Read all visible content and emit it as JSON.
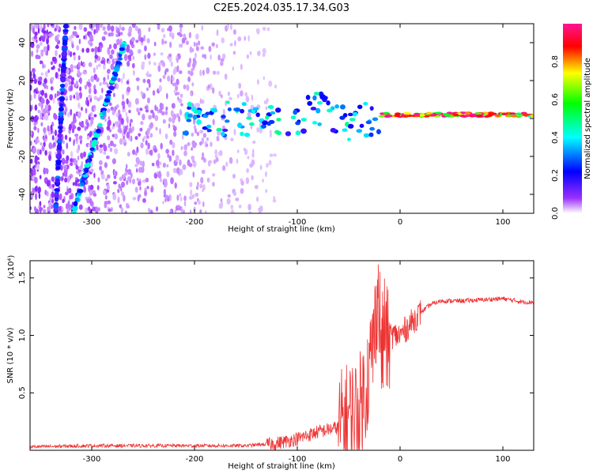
{
  "figure_title": "C2E5.2024.035.17.34.G03",
  "chart_data": [
    {
      "type": "heatmap",
      "xlabel": "Height of straight line (km)",
      "ylabel": "Frequency (Hz)",
      "xlim": [
        -360,
        130
      ],
      "ylim": [
        -50,
        50
      ],
      "x_ticks": [
        -300,
        -200,
        -100,
        0,
        100
      ],
      "y_ticks": [
        -40,
        -20,
        0,
        20,
        40
      ],
      "grid": false,
      "colorbar": {
        "label": "Normalized spectral amplitude",
        "range": [
          0.0,
          1.0
        ],
        "ticks": [
          0.0,
          0.2,
          0.4,
          0.6,
          0.8
        ],
        "colormap": [
          "#ffffff",
          "#9b30ff",
          "#0000ff",
          "#00ffff",
          "#00ff00",
          "#ffff00",
          "#ff0000",
          "#ff1493"
        ]
      },
      "features": [
        {
          "name": "near-vertical streak 1",
          "x": [
            -335,
            -325
          ],
          "y": [
            -50,
            50
          ],
          "amplitude": 0.3
        },
        {
          "name": "near-vertical streak 2",
          "x": [
            -318,
            -268
          ],
          "y": [
            -50,
            40
          ],
          "amplitude": 0.4
        },
        {
          "name": "low band",
          "x": [
            -210,
            -20
          ],
          "y": [
            -10,
            10
          ],
          "amplitude": 0.4
        },
        {
          "name": "stable line at ~2 Hz",
          "x": [
            -20,
            130
          ],
          "y": [
            1,
            3
          ],
          "amplitude": 0.95
        }
      ]
    },
    {
      "type": "line",
      "xlabel": "Height of straight line (km)",
      "ylabel": "SNR (10 * v/v)",
      "y_multiplier": "(x10⁴)",
      "xlim": [
        -360,
        130
      ],
      "ylim": [
        0,
        1.65
      ],
      "x_ticks": [
        -300,
        -200,
        -100,
        0,
        100
      ],
      "y_ticks": [
        0.5,
        1.0,
        1.5
      ],
      "y_tick_labels": [
        "0.5",
        "1.0",
        "1.5"
      ],
      "grid": false,
      "color": "#ee3333",
      "series": [
        {
          "x": [
            -360,
            -300,
            -200,
            -150,
            -120,
            -100,
            -80,
            -60,
            -50,
            -40,
            -35,
            -30,
            -25,
            -22,
            -20,
            -18,
            -15,
            -12,
            -10,
            -5,
            0,
            5,
            10,
            15,
            20,
            30,
            40,
            60,
            80,
            100,
            120,
            130
          ],
          "y": [
            0.03,
            0.04,
            0.04,
            0.04,
            0.06,
            0.1,
            0.16,
            0.2,
            0.3,
            0.35,
            0.5,
            0.7,
            1.0,
            1.4,
            1.2,
            0.8,
            1.1,
            0.9,
            1.0,
            1.0,
            1.0,
            1.05,
            1.1,
            1.15,
            1.2,
            1.27,
            1.3,
            1.3,
            1.31,
            1.32,
            1.29,
            1.29
          ]
        }
      ]
    }
  ]
}
